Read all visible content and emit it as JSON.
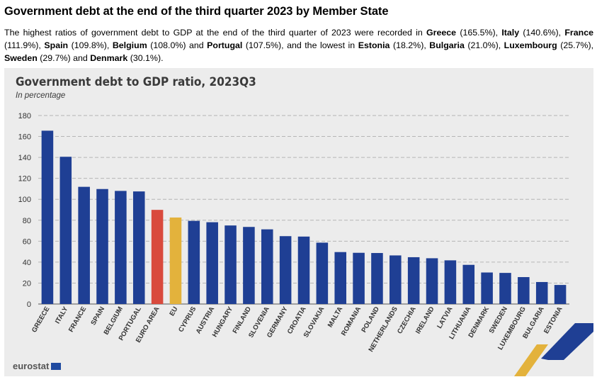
{
  "heading": "Government debt at the end of the third quarter 2023 by Member State",
  "intro": {
    "p1": "The highest ratios of government debt to GDP at the end of the third quarter of 2023 were recorded in ",
    "greece": "Greece",
    "greece_val": " (165.5%), ",
    "italy": "Italy",
    "italy_val": " (140.6%), ",
    "france": "France",
    "france_val": " (111.9%), ",
    "spain": "Spain",
    "spain_val": " (109.8%), ",
    "belgium": "Belgium",
    "belgium_val": " (108.0%) and ",
    "portugal": "Portugal",
    "portugal_val": " (107.5%), and the lowest in ",
    "estonia": "Estonia",
    "estonia_val": " (18.2%), ",
    "bulgaria": "Bulgaria",
    "bulgaria_val": " (21.0%), ",
    "luxembourg": "Luxembourg",
    "luxembourg_val": " (25.7%), ",
    "sweden": "Sweden",
    "sweden_val": " (29.7%) and ",
    "denmark": "Denmark",
    "denmark_val": " (30.1%)."
  },
  "logo": "eurostat",
  "colors": {
    "bar": "#1f3f94",
    "euro_area": "#d94a3d",
    "eu": "#e3b23c",
    "grid": "#b5b5b5",
    "panel": "#ececec"
  },
  "chart_data": {
    "type": "bar",
    "title": "Government debt to GDP ratio, 2023Q3",
    "subtitle": "In percentage",
    "xlabel": "",
    "ylabel": "",
    "ylim": [
      0,
      180
    ],
    "yticks": [
      0,
      20,
      40,
      60,
      80,
      100,
      120,
      140,
      160,
      180
    ],
    "grid": true,
    "categories": [
      "GREECE",
      "ITALY",
      "FRANCE",
      "SPAIN",
      "BELGIUM",
      "PORTUGAL",
      "EURO AREA",
      "EU",
      "CYPRUS",
      "AUSTRIA",
      "HUNGARY",
      "FINLAND",
      "SLOVENIA",
      "GERMANY",
      "CROATIA",
      "SLOVAKIA",
      "MALTA",
      "ROMANIA",
      "POLAND",
      "NETHERLANDS",
      "CZECHIA",
      "IRELAND",
      "LATVIA",
      "LITHUANIA",
      "DENMARK",
      "SWEDEN",
      "LUXEMBOURG",
      "BULGARIA",
      "ESTONIA"
    ],
    "values": [
      165.5,
      140.6,
      111.9,
      109.8,
      108.0,
      107.5,
      89.9,
      82.6,
      79.4,
      78.1,
      75.0,
      73.6,
      71.3,
      64.8,
      64.4,
      58.6,
      49.6,
      48.9,
      48.7,
      46.4,
      44.7,
      43.7,
      41.7,
      37.4,
      30.1,
      29.7,
      25.7,
      21.0,
      18.2
    ],
    "highlight": {
      "EURO AREA": "euro_area",
      "EU": "eu"
    }
  }
}
